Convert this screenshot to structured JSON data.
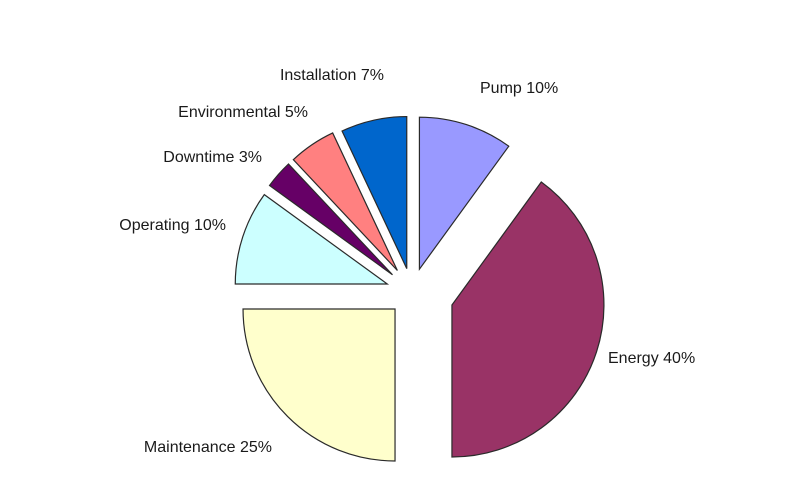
{
  "chart_data": {
    "type": "pie",
    "title": "",
    "slices": [
      {
        "name": "Pump",
        "value": 10,
        "label": "Pump 10%",
        "color": "#9999ff"
      },
      {
        "name": "Energy",
        "value": 40,
        "label": "Energy 40%",
        "color": "#993366"
      },
      {
        "name": "Maintenance",
        "value": 25,
        "label": "Maintenance 25%",
        "color": "#ffffcc"
      },
      {
        "name": "Operating",
        "value": 10,
        "label": "Operating 10%",
        "color": "#ccffff"
      },
      {
        "name": "Downtime",
        "value": 3,
        "label": "Downtime 3%",
        "color": "#660066"
      },
      {
        "name": "Environmental",
        "value": 5,
        "label": "Environmental 5%",
        "color": "#ff8080"
      },
      {
        "name": "Installation",
        "value": 7,
        "label": "Installation 7%",
        "color": "#0066cc"
      }
    ],
    "exploded": true,
    "start": "top, clockwise"
  }
}
